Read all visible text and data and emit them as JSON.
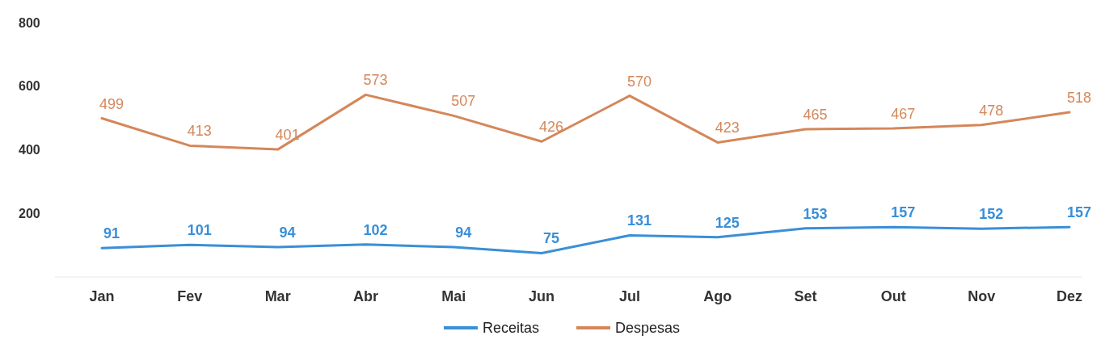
{
  "chart_data": {
    "type": "line",
    "categories": [
      "Jan",
      "Fev",
      "Mar",
      "Abr",
      "Mai",
      "Jun",
      "Jul",
      "Ago",
      "Set",
      "Out",
      "Nov",
      "Dez"
    ],
    "series": [
      {
        "name": "Receitas",
        "color": "#3a8fd8",
        "values": [
          91,
          101,
          94,
          102,
          94,
          75,
          131,
          125,
          153,
          157,
          152,
          157
        ]
      },
      {
        "name": "Despesas",
        "color": "#d4875a",
        "values": [
          499,
          413,
          401,
          573,
          507,
          426,
          570,
          423,
          465,
          467,
          478,
          518
        ]
      }
    ],
    "ylim": [
      0,
      800
    ],
    "yticks": [
      200,
      400,
      600,
      800
    ],
    "data_labels": true,
    "legend": "bottom",
    "marker": "none",
    "line_style": "solid"
  }
}
